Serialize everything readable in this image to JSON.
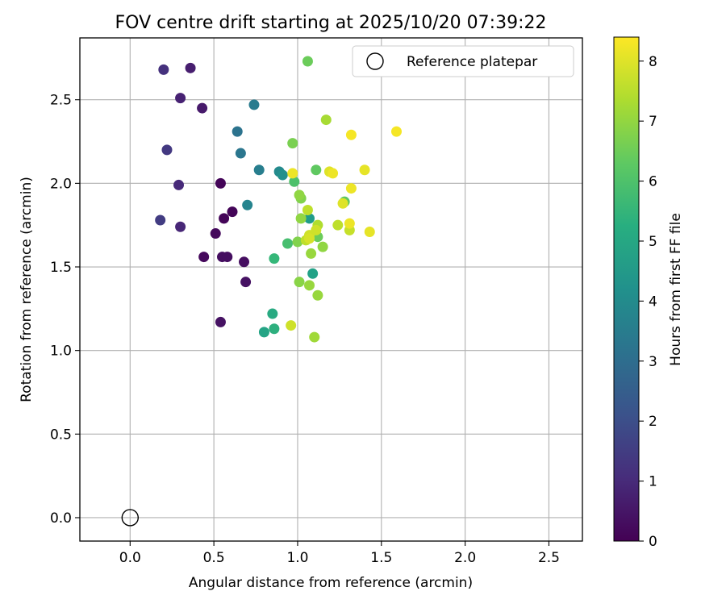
{
  "chart_data": {
    "type": "scatter",
    "title": "FOV centre drift starting at 2025/10/20 07:39:22",
    "xlabel": "Angular distance from reference (arcmin)",
    "ylabel": "Rotation from reference (arcmin)",
    "xlim": [
      -0.3,
      2.7
    ],
    "ylim": [
      -0.14,
      2.87
    ],
    "xticks": [
      "0.0",
      "0.5",
      "1.0",
      "1.5",
      "2.0",
      "2.5"
    ],
    "yticks": [
      "0.0",
      "0.5",
      "1.0",
      "1.5",
      "2.0",
      "2.5"
    ],
    "grid": true,
    "legend": {
      "position": "top-right",
      "entries": [
        "Reference platepar"
      ]
    },
    "colorbar": {
      "label": "Hours from first FF file",
      "min": 0,
      "max": 8.4,
      "ticks": [
        "0",
        "1",
        "2",
        "3",
        "4",
        "5",
        "6",
        "7",
        "8"
      ],
      "colormap": "viridis"
    },
    "reference_point": {
      "x": 0.0,
      "y": 0.0
    },
    "points": [
      [
        0.54,
        2.0,
        0.1
      ],
      [
        0.56,
        1.79,
        0.1
      ],
      [
        0.61,
        1.83,
        0.1
      ],
      [
        0.51,
        1.7,
        0.2
      ],
      [
        0.44,
        1.56,
        0.2
      ],
      [
        0.55,
        1.56,
        0.3
      ],
      [
        0.58,
        1.56,
        0.3
      ],
      [
        0.68,
        1.53,
        0.3
      ],
      [
        0.69,
        1.41,
        0.4
      ],
      [
        0.54,
        1.17,
        0.4
      ],
      [
        0.43,
        2.45,
        0.6
      ],
      [
        0.36,
        2.69,
        0.7
      ],
      [
        0.3,
        2.51,
        0.8
      ],
      [
        0.3,
        1.74,
        0.9
      ],
      [
        0.29,
        1.99,
        1.0
      ],
      [
        0.2,
        2.68,
        1.2
      ],
      [
        0.22,
        2.2,
        1.4
      ],
      [
        0.18,
        1.78,
        1.5
      ],
      [
        0.64,
        2.31,
        3.2
      ],
      [
        0.66,
        2.18,
        3.3
      ],
      [
        0.74,
        2.47,
        3.5
      ],
      [
        0.77,
        2.08,
        3.6
      ],
      [
        0.7,
        1.87,
        3.8
      ],
      [
        0.89,
        2.07,
        4.0
      ],
      [
        0.91,
        2.05,
        4.2
      ],
      [
        1.07,
        1.79,
        4.6
      ],
      [
        1.09,
        1.46,
        4.8
      ],
      [
        0.8,
        1.11,
        4.9
      ],
      [
        0.85,
        1.22,
        5.1
      ],
      [
        0.86,
        1.13,
        5.3
      ],
      [
        0.86,
        1.55,
        5.6
      ],
      [
        0.94,
        1.64,
        5.9
      ],
      [
        0.98,
        2.01,
        6.0
      ],
      [
        1.11,
        2.08,
        6.3
      ],
      [
        1.28,
        1.89,
        6.3
      ],
      [
        1.06,
        2.73,
        6.5
      ],
      [
        1.12,
        1.68,
        6.5
      ],
      [
        0.97,
        2.24,
        6.7
      ],
      [
        1.0,
        1.65,
        6.8
      ],
      [
        1.02,
        1.91,
        6.8
      ],
      [
        1.01,
        1.41,
        6.9
      ],
      [
        1.01,
        1.93,
        7.0
      ],
      [
        1.02,
        1.79,
        7.0
      ],
      [
        1.15,
        1.62,
        7.0
      ],
      [
        1.07,
        1.39,
        7.1
      ],
      [
        1.08,
        1.58,
        7.1
      ],
      [
        1.12,
        1.33,
        7.1
      ],
      [
        1.1,
        1.08,
        7.2
      ],
      [
        1.17,
        2.38,
        7.3
      ],
      [
        1.12,
        1.75,
        7.4
      ],
      [
        1.05,
        1.66,
        7.6
      ],
      [
        1.06,
        1.84,
        7.6
      ],
      [
        1.24,
        1.75,
        7.6
      ],
      [
        1.31,
        1.72,
        7.7
      ],
      [
        0.96,
        1.15,
        7.8
      ],
      [
        1.07,
        1.69,
        7.8
      ],
      [
        1.11,
        1.72,
        7.8
      ],
      [
        1.07,
        1.67,
        7.9
      ],
      [
        1.19,
        2.07,
        8.0
      ],
      [
        1.27,
        1.88,
        8.0
      ],
      [
        1.4,
        2.08,
        8.1
      ],
      [
        1.43,
        1.71,
        8.1
      ],
      [
        1.21,
        2.06,
        8.2
      ],
      [
        1.32,
        1.97,
        8.2
      ],
      [
        1.31,
        1.76,
        8.2
      ],
      [
        1.32,
        2.29,
        8.3
      ],
      [
        1.59,
        2.31,
        8.3
      ],
      [
        0.97,
        2.06,
        8.2
      ]
    ]
  }
}
